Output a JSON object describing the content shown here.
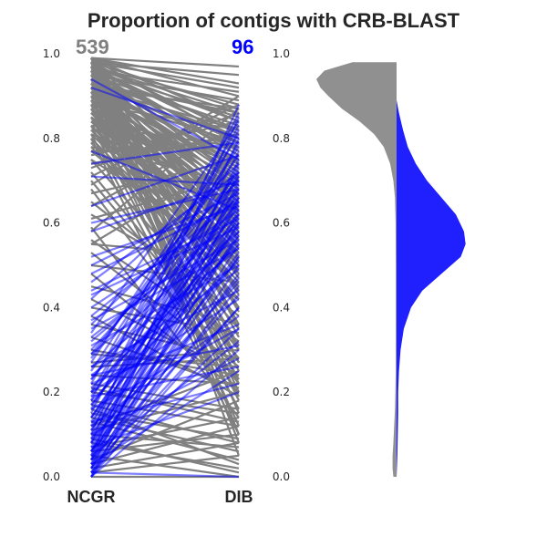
{
  "chart_data": {
    "type": "slope+violin",
    "title": "Proportion of contigs with CRB-BLAST",
    "ylim": [
      0,
      1
    ],
    "yticks": [
      "0.0",
      "0.2",
      "0.4",
      "0.6",
      "0.8",
      "1.0"
    ],
    "categories": [
      "NCGR",
      "DIB"
    ],
    "grid": false,
    "series": [
      {
        "count_label": "539",
        "color": "#808080",
        "line_opacity": 1.0,
        "pairs": [
          [
            0.98,
            0.92
          ],
          [
            0.97,
            0.88
          ],
          [
            0.96,
            0.85
          ],
          [
            0.99,
            0.9
          ],
          [
            0.95,
            0.83
          ],
          [
            0.94,
            0.8
          ],
          [
            0.97,
            0.86
          ],
          [
            0.98,
            0.87
          ],
          [
            0.93,
            0.78
          ],
          [
            0.96,
            0.82
          ],
          [
            0.99,
            0.93
          ],
          [
            0.92,
            0.75
          ],
          [
            0.95,
            0.79
          ],
          [
            0.97,
            0.84
          ],
          [
            0.91,
            0.72
          ],
          [
            0.98,
            0.81
          ],
          [
            0.94,
            0.7
          ],
          [
            0.96,
            0.76
          ],
          [
            0.9,
            0.68
          ],
          [
            0.93,
            0.74
          ],
          [
            0.97,
            0.77
          ],
          [
            0.89,
            0.65
          ],
          [
            0.92,
            0.69
          ],
          [
            0.95,
            0.73
          ],
          [
            0.88,
            0.62
          ],
          [
            0.91,
            0.66
          ],
          [
            0.94,
            0.71
          ],
          [
            0.99,
            0.79
          ],
          [
            0.86,
            0.6
          ],
          [
            0.9,
            0.63
          ],
          [
            0.93,
            0.67
          ],
          [
            0.96,
            0.72
          ],
          [
            0.85,
            0.57
          ],
          [
            0.89,
            0.61
          ],
          [
            0.92,
            0.64
          ],
          [
            0.95,
            0.68
          ],
          [
            0.84,
            0.55
          ],
          [
            0.88,
            0.58
          ],
          [
            0.91,
            0.62
          ],
          [
            0.98,
            0.74
          ],
          [
            0.83,
            0.52
          ],
          [
            0.87,
            0.56
          ],
          [
            0.9,
            0.59
          ],
          [
            0.94,
            0.65
          ],
          [
            0.82,
            0.5
          ],
          [
            0.86,
            0.53
          ],
          [
            0.89,
            0.57
          ],
          [
            0.97,
            0.7
          ],
          [
            0.81,
            0.48
          ],
          [
            0.85,
            0.51
          ],
          [
            0.88,
            0.54
          ],
          [
            0.93,
            0.61
          ],
          [
            0.8,
            0.45
          ],
          [
            0.84,
            0.49
          ],
          [
            0.87,
            0.52
          ],
          [
            0.96,
            0.66
          ],
          [
            0.79,
            0.42
          ],
          [
            0.83,
            0.46
          ],
          [
            0.86,
            0.5
          ],
          [
            0.92,
            0.58
          ],
          [
            0.78,
            0.4
          ],
          [
            0.82,
            0.44
          ],
          [
            0.99,
            0.63
          ],
          [
            0.95,
            0.6
          ],
          [
            0.97,
            0.56
          ],
          [
            0.94,
            0.52
          ],
          [
            0.98,
            0.48
          ],
          [
            0.96,
            0.44
          ],
          [
            0.93,
            0.4
          ],
          [
            0.99,
            0.36
          ],
          [
            0.95,
            0.33
          ],
          [
            0.92,
            0.3
          ],
          [
            0.98,
            0.27
          ],
          [
            0.91,
            0.25
          ],
          [
            0.97,
            0.22
          ],
          [
            0.94,
            0.2
          ],
          [
            0.9,
            0.18
          ],
          [
            0.96,
            0.15
          ],
          [
            0.88,
            0.12
          ],
          [
            0.99,
            0.1
          ],
          [
            0.75,
            0.35
          ],
          [
            0.72,
            0.3
          ],
          [
            0.7,
            0.28
          ],
          [
            0.68,
            0.22
          ],
          [
            0.65,
            0.38
          ],
          [
            0.62,
            0.42
          ],
          [
            0.59,
            0.14
          ],
          [
            0.56,
            0.32
          ],
          [
            0.55,
            0.52
          ],
          [
            0.53,
            0.26
          ],
          [
            0.5,
            0.46
          ],
          [
            0.48,
            0.2
          ],
          [
            0.45,
            0.36
          ],
          [
            0.98,
            0.05
          ],
          [
            0.97,
            0.08
          ],
          [
            0.8,
            0.1
          ],
          [
            0.77,
            0.78
          ],
          [
            0.74,
            0.81
          ],
          [
            0.99,
            0.97
          ],
          [
            0.98,
            0.95
          ],
          [
            0.96,
            0.91
          ],
          [
            0.95,
            0.89
          ],
          [
            0.93,
            0.86
          ],
          [
            0.99,
            0.84
          ],
          [
            0.92,
            0.82
          ],
          [
            0.9,
            0.79
          ],
          [
            0.97,
            0.8
          ],
          [
            0.94,
            0.77
          ],
          [
            0.91,
            0.73
          ],
          [
            0.89,
            0.7
          ],
          [
            0.87,
            0.66
          ],
          [
            0.85,
            0.63
          ],
          [
            0.05,
            0.0
          ],
          [
            0.02,
            0.08
          ],
          [
            0.0,
            0.0
          ],
          [
            0.03,
            0.12
          ],
          [
            0.01,
            0.05
          ],
          [
            0.1,
            0.07
          ],
          [
            0.16,
            0.03
          ],
          [
            0.12,
            0.25
          ],
          [
            0.08,
            0.02
          ],
          [
            0.04,
            0.18
          ],
          [
            0.2,
            0.15
          ],
          [
            0.24,
            0.22
          ],
          [
            0.06,
            0.1
          ],
          [
            0.14,
            0.06
          ],
          [
            0.18,
            0.12
          ],
          [
            0.22,
            0.16
          ],
          [
            0.3,
            0.24
          ],
          [
            0.26,
            0.28
          ],
          [
            0.11,
            0.2
          ],
          [
            0.07,
            0.14
          ],
          [
            0.15,
            0.09
          ],
          [
            0.27,
            0.3
          ],
          [
            0.33,
            0.21
          ],
          [
            0.36,
            0.28
          ],
          [
            0.4,
            0.34
          ],
          [
            0.29,
            0.26
          ],
          [
            0.21,
            0.13
          ],
          [
            0.17,
            0.08
          ],
          [
            0.13,
            0.04
          ],
          [
            0.09,
            0.01
          ],
          [
            0.38,
            0.19
          ],
          [
            0.42,
            0.24
          ],
          [
            0.76,
            0.84
          ],
          [
            0.73,
            0.86
          ],
          [
            0.71,
            0.88
          ],
          [
            0.69,
            0.9
          ],
          [
            0.67,
            0.75
          ],
          [
            0.64,
            0.83
          ],
          [
            0.61,
            0.71
          ],
          [
            0.58,
            0.87
          ],
          [
            0.55,
            0.76
          ],
          [
            0.78,
            0.69
          ],
          [
            0.81,
            0.67
          ],
          [
            0.84,
            0.64
          ],
          [
            0.86,
            0.74
          ],
          [
            0.83,
            0.78
          ],
          [
            0.88,
            0.82
          ],
          [
            0.92,
            0.87
          ],
          [
            0.94,
            0.62
          ],
          [
            0.96,
            0.58
          ],
          [
            0.98,
            0.54
          ],
          [
            0.91,
            0.5
          ],
          [
            0.93,
            0.47
          ],
          [
            0.95,
            0.43
          ],
          [
            0.97,
            0.39
          ],
          [
            0.99,
            0.35
          ],
          [
            0.89,
            0.31
          ],
          [
            0.87,
            0.27
          ],
          [
            0.85,
            0.23
          ],
          [
            0.83,
            0.19
          ],
          [
            0.81,
            0.16
          ],
          [
            0.79,
            0.45
          ],
          [
            0.77,
            0.49
          ],
          [
            0.75,
            0.53
          ]
        ]
      },
      {
        "count_label": "96",
        "color": "#0000ff",
        "line_opacity": 0.5,
        "pairs": [
          [
            0.0,
            0.62
          ],
          [
            0.02,
            0.7
          ],
          [
            0.04,
            0.75
          ],
          [
            0.01,
            0.55
          ],
          [
            0.03,
            0.66
          ],
          [
            0.05,
            0.8
          ],
          [
            0.06,
            0.72
          ],
          [
            0.0,
            0.5
          ],
          [
            0.08,
            0.85
          ],
          [
            0.02,
            0.58
          ],
          [
            0.1,
            0.88
          ],
          [
            0.04,
            0.63
          ],
          [
            0.07,
            0.68
          ],
          [
            0.01,
            0.45
          ],
          [
            0.12,
            0.77
          ],
          [
            0.03,
            0.52
          ],
          [
            0.15,
            0.82
          ],
          [
            0.05,
            0.6
          ],
          [
            0.09,
            0.74
          ],
          [
            0.0,
            0.4
          ],
          [
            0.18,
            0.86
          ],
          [
            0.06,
            0.65
          ],
          [
            0.11,
            0.71
          ],
          [
            0.02,
            0.48
          ],
          [
            0.2,
            0.79
          ],
          [
            0.08,
            0.69
          ],
          [
            0.14,
            0.64
          ],
          [
            0.01,
            0.35
          ],
          [
            0.22,
            0.83
          ],
          [
            0.1,
            0.57
          ],
          [
            0.16,
            0.73
          ],
          [
            0.04,
            0.43
          ],
          [
            0.25,
            0.78
          ],
          [
            0.13,
            0.61
          ],
          [
            0.19,
            0.67
          ],
          [
            0.06,
            0.53
          ],
          [
            0.28,
            0.76
          ],
          [
            0.17,
            0.59
          ],
          [
            0.23,
            0.71
          ],
          [
            0.09,
            0.46
          ],
          [
            0.3,
            0.68
          ],
          [
            0.21,
            0.55
          ],
          [
            0.27,
            0.81
          ],
          [
            0.12,
            0.38
          ],
          [
            0.32,
            0.62
          ],
          [
            0.24,
            0.49
          ],
          [
            0.34,
            0.84
          ],
          [
            0.14,
            0.56
          ],
          [
            0.36,
            0.7
          ],
          [
            0.26,
            0.44
          ],
          [
            0.38,
            0.66
          ],
          [
            0.18,
            0.51
          ],
          [
            0.42,
            0.74
          ],
          [
            0.29,
            0.58
          ],
          [
            0.44,
            0.61
          ],
          [
            0.2,
            0.42
          ],
          [
            0.46,
            0.72
          ],
          [
            0.31,
            0.5
          ],
          [
            0.48,
            0.65
          ],
          [
            0.22,
            0.36
          ],
          [
            0.52,
            0.64
          ],
          [
            0.35,
            0.54
          ],
          [
            0.58,
            0.7
          ],
          [
            0.6,
            0.68
          ],
          [
            0.64,
            0.76
          ],
          [
            0.71,
            0.69
          ],
          [
            0.74,
            0.79
          ],
          [
            0.77,
            0.63
          ],
          [
            0.94,
            0.75
          ],
          [
            0.92,
            0.8
          ],
          [
            0.0,
            0.3
          ],
          [
            0.01,
            0.0
          ],
          [
            0.03,
            0.25
          ],
          [
            0.05,
            0.32
          ],
          [
            0.07,
            0.2
          ],
          [
            0.1,
            0.28
          ],
          [
            0.13,
            0.22
          ],
          [
            0.16,
            0.35
          ],
          [
            0.19,
            0.26
          ],
          [
            0.24,
            0.31
          ],
          [
            0.02,
            0.4
          ],
          [
            0.04,
            0.57
          ],
          [
            0.06,
            0.47
          ],
          [
            0.08,
            0.52
          ],
          [
            0.11,
            0.6
          ],
          [
            0.14,
            0.66
          ],
          [
            0.17,
            0.62
          ],
          [
            0.2,
            0.58
          ],
          [
            0.23,
            0.65
          ],
          [
            0.26,
            0.54
          ],
          [
            0.29,
            0.72
          ],
          [
            0.33,
            0.6
          ],
          [
            0.37,
            0.56
          ],
          [
            0.4,
            0.63
          ],
          [
            0.43,
            0.59
          ],
          [
            0.5,
            0.67
          ]
        ]
      }
    ],
    "violins": [
      {
        "side": "left",
        "color": "#909090",
        "range": [
          0.0,
          0.98
        ],
        "density": [
          [
            0.0,
            0.04
          ],
          [
            0.02,
            0.05
          ],
          [
            0.05,
            0.05
          ],
          [
            0.08,
            0.04
          ],
          [
            0.12,
            0.03
          ],
          [
            0.16,
            0.02
          ],
          [
            0.2,
            0.015
          ],
          [
            0.25,
            0.01
          ],
          [
            0.3,
            0.01
          ],
          [
            0.4,
            0.01
          ],
          [
            0.5,
            0.01
          ],
          [
            0.6,
            0.012
          ],
          [
            0.66,
            0.02
          ],
          [
            0.7,
            0.04
          ],
          [
            0.74,
            0.08
          ],
          [
            0.78,
            0.16
          ],
          [
            0.81,
            0.28
          ],
          [
            0.84,
            0.46
          ],
          [
            0.87,
            0.68
          ],
          [
            0.9,
            0.85
          ],
          [
            0.92,
            0.95
          ],
          [
            0.94,
            1.0
          ],
          [
            0.96,
            0.9
          ],
          [
            0.98,
            0.55
          ]
        ]
      },
      {
        "side": "right",
        "color": "#2020ff",
        "range": [
          0.0,
          0.89
        ],
        "density": [
          [
            0.0,
            0.0
          ],
          [
            0.05,
            0.01
          ],
          [
            0.1,
            0.015
          ],
          [
            0.15,
            0.02
          ],
          [
            0.2,
            0.02
          ],
          [
            0.25,
            0.03
          ],
          [
            0.3,
            0.05
          ],
          [
            0.35,
            0.09
          ],
          [
            0.4,
            0.18
          ],
          [
            0.44,
            0.32
          ],
          [
            0.48,
            0.56
          ],
          [
            0.52,
            0.8
          ],
          [
            0.55,
            0.86
          ],
          [
            0.58,
            0.84
          ],
          [
            0.62,
            0.74
          ],
          [
            0.66,
            0.56
          ],
          [
            0.7,
            0.38
          ],
          [
            0.74,
            0.24
          ],
          [
            0.78,
            0.14
          ],
          [
            0.82,
            0.08
          ],
          [
            0.86,
            0.03
          ],
          [
            0.89,
            0.0
          ]
        ]
      }
    ]
  }
}
